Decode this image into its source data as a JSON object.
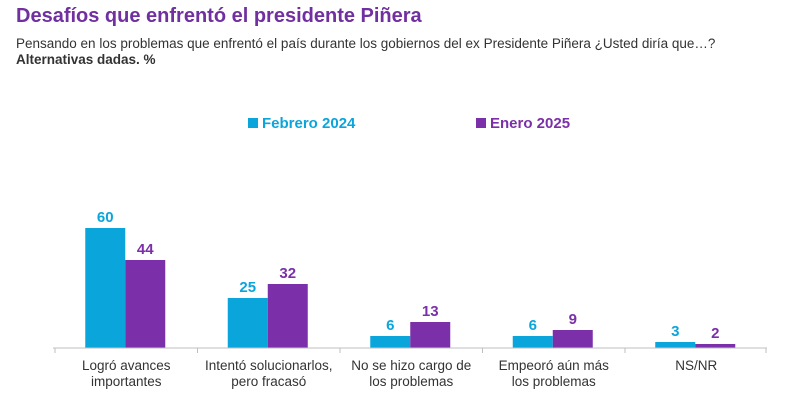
{
  "header": {
    "title": "Desafíos que enfrentó el presidente Piñera",
    "subtitle": "Pensando en los problemas que enfrentó el país durante los gobiernos del ex Presidente Piñera ¿Usted diría que…?",
    "note": "Alternativas dadas. %"
  },
  "chart_data": {
    "type": "bar",
    "title": "Desafíos que enfrentó el presidente Piñera",
    "xlabel": "",
    "ylabel": "",
    "ylim": [
      0,
      60
    ],
    "grid": false,
    "legend_position": "top-center",
    "categories": [
      [
        "Logró avances",
        "importantes"
      ],
      [
        "Intentó solucionarlos,",
        "pero fracasó"
      ],
      [
        "No se hizo cargo de",
        "los problemas"
      ],
      [
        "Empeoró aún más",
        "los problemas"
      ],
      [
        "NS/NR"
      ]
    ],
    "series": [
      {
        "name": "Febrero 2024",
        "color": "#0AA5DB",
        "values": [
          60,
          25,
          6,
          6,
          3
        ]
      },
      {
        "name": "Enero 2025",
        "color": "#7B2FA8",
        "values": [
          44,
          32,
          13,
          9,
          2
        ]
      }
    ]
  }
}
